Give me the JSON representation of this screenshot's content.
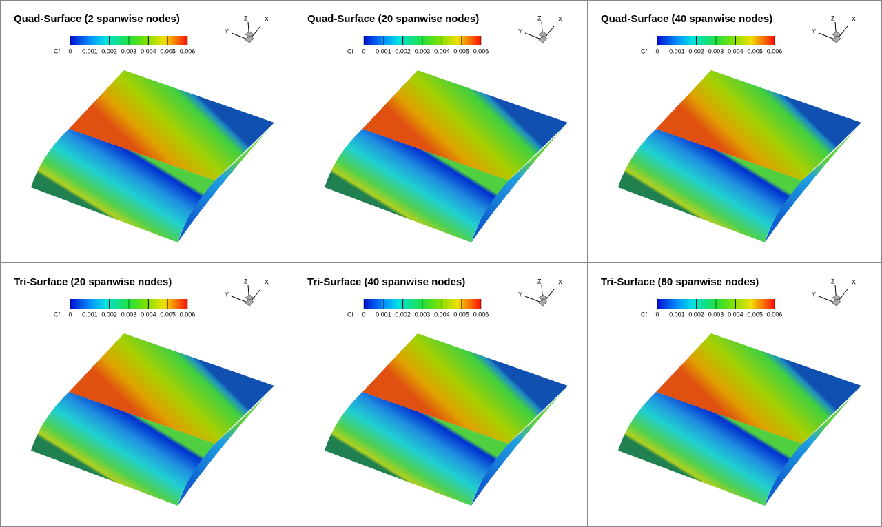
{
  "panels": [
    {
      "title": "Quad-Surface (2 spanwise nodes)"
    },
    {
      "title": "Quad-Surface (20 spanwise nodes)"
    },
    {
      "title": "Quad-Surface (40 spanwise nodes)"
    },
    {
      "title": "Tri-Surface (20 spanwise nodes)"
    },
    {
      "title": "Tri-Surface (40 spanwise nodes)"
    },
    {
      "title": "Tri-Surface (80 spanwise nodes)"
    }
  ],
  "colorbar": {
    "label": "Cf",
    "ticks": [
      "0",
      "0.001",
      "0.002",
      "0.003",
      "0.004",
      "0.005",
      "0.006"
    ]
  },
  "triad": {
    "x": "X",
    "y": "Y",
    "z": "Z"
  }
}
